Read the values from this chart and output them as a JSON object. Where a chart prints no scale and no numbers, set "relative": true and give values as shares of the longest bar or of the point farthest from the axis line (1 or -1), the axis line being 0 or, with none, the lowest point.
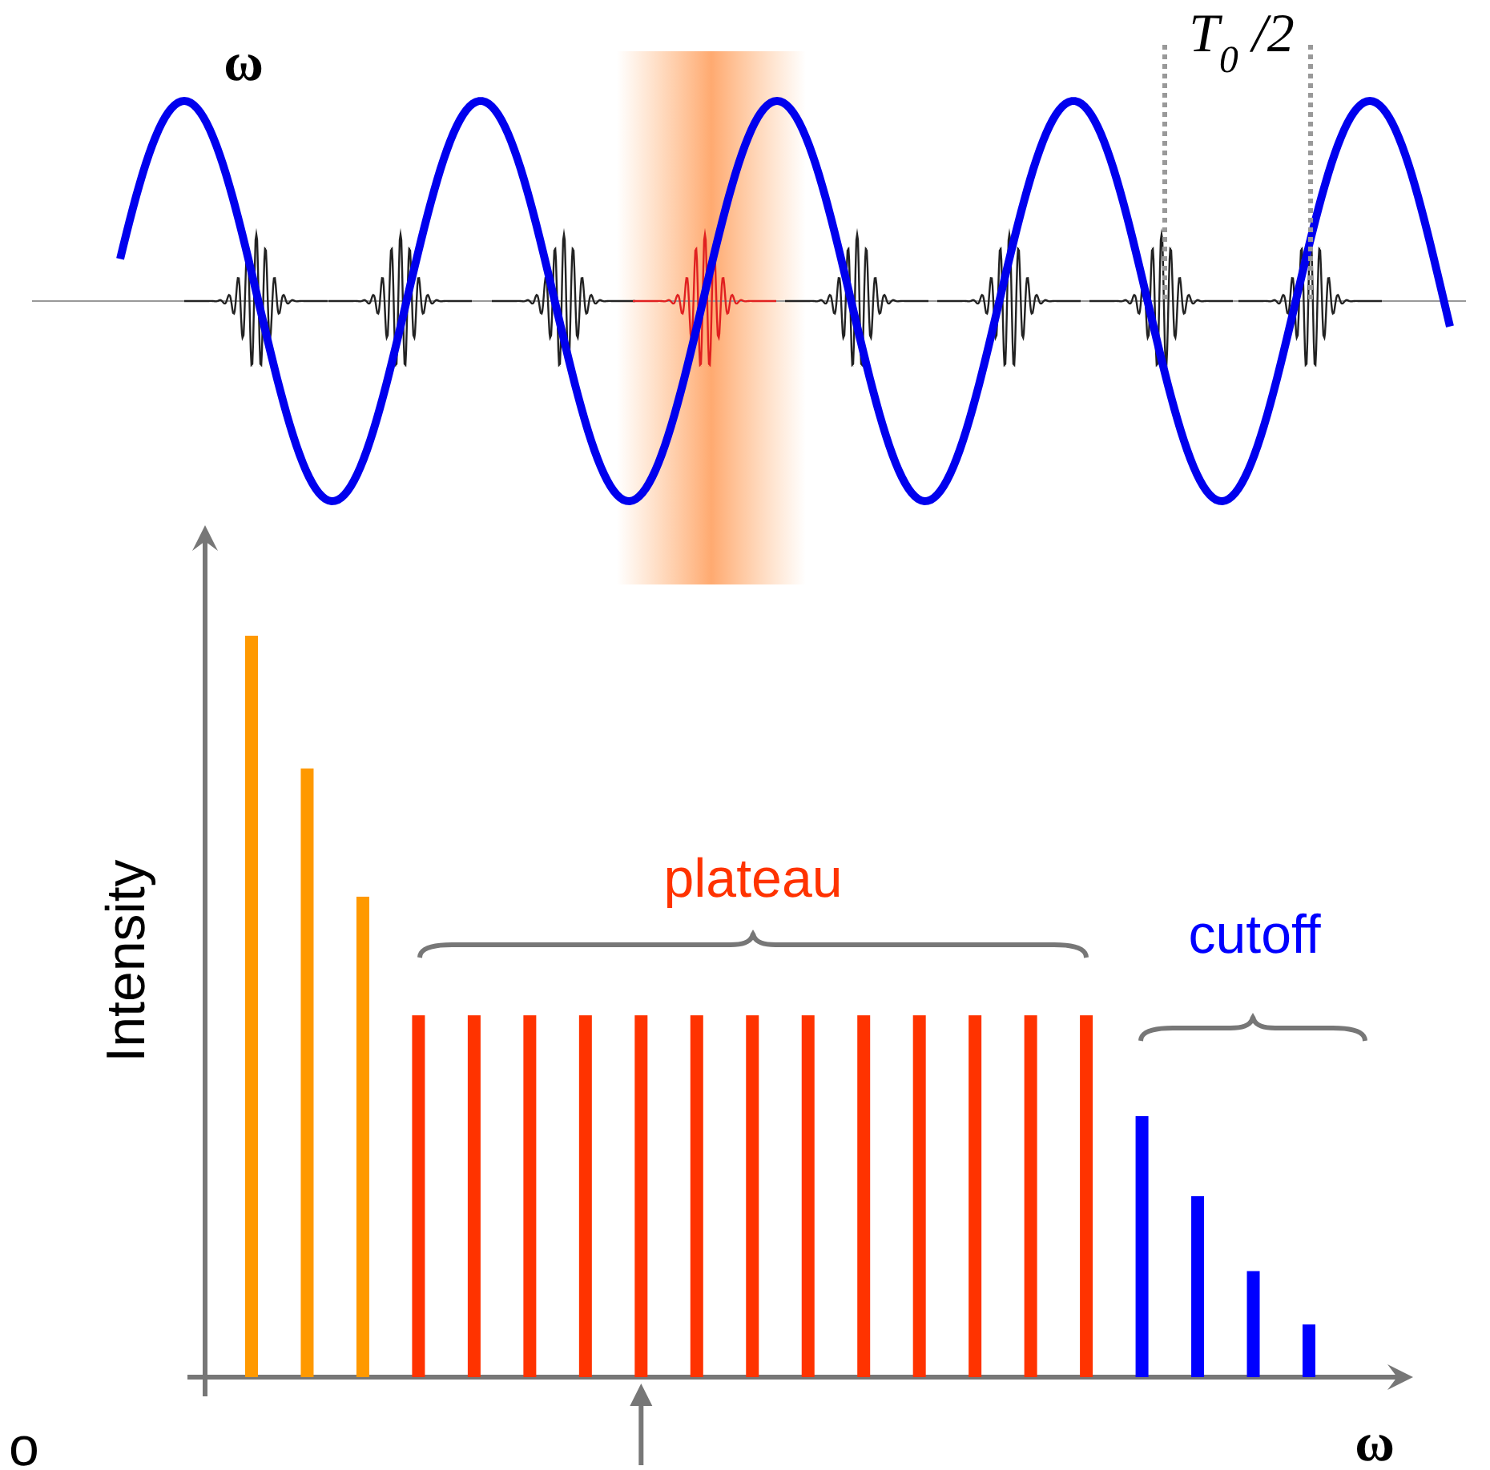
{
  "chart_data": {
    "type": "bar",
    "relative": true,
    "xlabel": "ω",
    "ylabel": "Intensity",
    "categories": [
      null,
      null,
      null,
      null,
      null,
      null,
      null,
      null,
      null,
      null,
      null,
      null,
      null,
      null,
      null,
      null,
      null,
      null,
      null,
      null
    ],
    "values": [
      1,
      0.821,
      0.648,
      0.488,
      0.488,
      0.488,
      0.488,
      0.488,
      0.488,
      0.488,
      0.488,
      0.488,
      0.488,
      0.488,
      0.488,
      0.488,
      0.352,
      0.244,
      0.143,
      0.071
    ],
    "colors": [
      "#ff9900",
      "#ff9900",
      "#ff9900",
      "#ff3300",
      "#ff3300",
      "#ff3300",
      "#ff3300",
      "#ff3300",
      "#ff3300",
      "#ff3300",
      "#ff3300",
      "#ff3300",
      "#ff3300",
      "#ff3300",
      "#ff3300",
      "#ff3300",
      "#0000ff",
      "#0000ff",
      "#0000ff",
      "#0000ff"
    ],
    "annotations": [
      "plateau",
      "cutoff",
      "o",
      "ω",
      "T$_{0}$/2"
    ]
  }
}
